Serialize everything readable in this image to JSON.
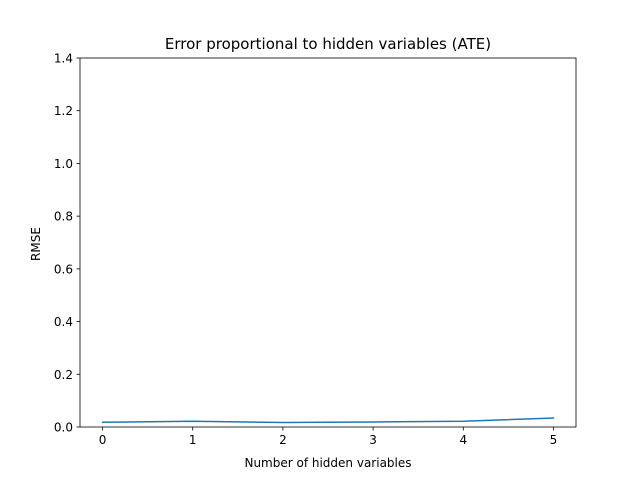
{
  "chart_data": {
    "type": "line",
    "title": "Error proportional to hidden variables (ATE)",
    "xlabel": "Number of hidden variables",
    "ylabel": "RMSE",
    "x": [
      0,
      1,
      2,
      3,
      4,
      5
    ],
    "xlim": [
      -0.25,
      5.25
    ],
    "ylim": [
      0,
      1.4
    ],
    "xticks": [
      "0",
      "1",
      "2",
      "3",
      "4",
      "5"
    ],
    "yticks": [
      "0.0",
      "0.2",
      "0.4",
      "0.6",
      "0.8",
      "1.0",
      "1.2",
      "1.4"
    ],
    "series": [
      {
        "values": [
          0.018,
          0.022,
          0.017,
          0.019,
          0.022,
          0.034
        ],
        "color": "#1f77b4"
      }
    ],
    "grid": false,
    "legend": "none"
  }
}
